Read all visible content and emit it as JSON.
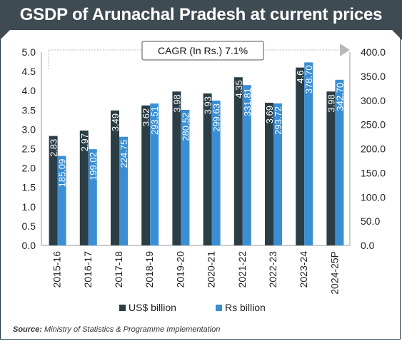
{
  "title": "GSDP of Arunachal Pradesh at current prices",
  "annotation": "CAGR (In Rs.) 7.1%",
  "source_label": "Source:",
  "source_text": "Ministry of Statistics & Programme Implementation",
  "colors": {
    "usd": "#2c3e45",
    "rs": "#3a8fd4",
    "title_bg": "#3f4b53",
    "arrow": "#b8b8b8"
  },
  "chart_data": {
    "type": "bar",
    "categories": [
      "2015-16",
      "2016-17",
      "2017-18",
      "2018-19",
      "2019-20",
      "2020-21",
      "2021-22",
      "2022-23",
      "2023-24",
      "2024-25P"
    ],
    "series": [
      {
        "name": "US$ billion",
        "axis": "left",
        "values": [
          2.83,
          2.97,
          3.49,
          3.62,
          3.98,
          3.93,
          4.35,
          3.69,
          4.6,
          3.98
        ],
        "labels": [
          "2.83",
          "2.97",
          "3.49",
          "3.62",
          "3.98",
          "3.93",
          "4.35",
          "3.69",
          "4.6",
          "3.98"
        ]
      },
      {
        "name": "Rs billion",
        "axis": "right",
        "values": [
          185.09,
          199.02,
          224.75,
          293.51,
          280.52,
          299.63,
          331.81,
          293.72,
          378.7,
          342.7
        ],
        "labels": [
          "185.09",
          "199.02",
          "224.75",
          "293.51",
          "280.52",
          "299.63",
          "331.81",
          "293.72",
          "378.70",
          "342.70"
        ]
      }
    ],
    "y_left": {
      "min": 0,
      "max": 5,
      "ticks": [
        "0.0",
        "0.5",
        "1.0",
        "1.5",
        "2.0",
        "2.5",
        "3.0",
        "3.5",
        "4.0",
        "4.5",
        "5.0"
      ]
    },
    "y_right": {
      "min": 0,
      "max": 400,
      "ticks": [
        "0.0",
        "50.0",
        "100.0",
        "150.0",
        "200.0",
        "250.0",
        "300.0",
        "350.0",
        "400.0"
      ]
    },
    "legend_position": "bottom",
    "grid": false
  }
}
